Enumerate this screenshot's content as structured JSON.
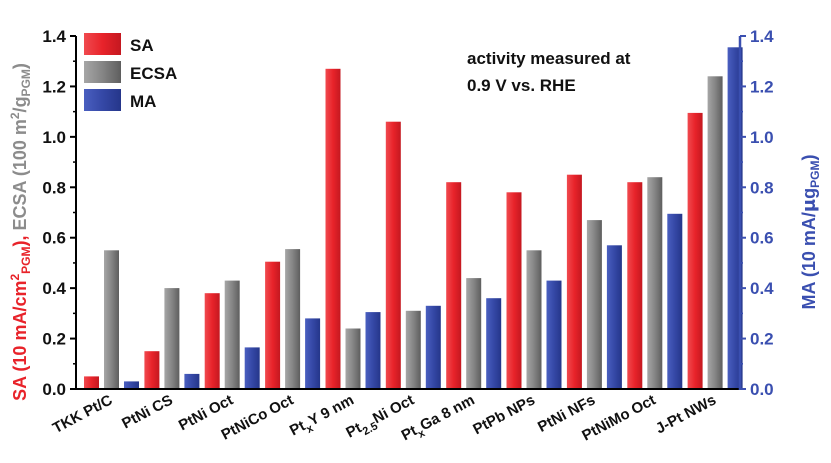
{
  "chart_data": {
    "type": "bar",
    "categories": [
      {
        "main": "TKK Pt/C"
      },
      {
        "main": "PtNi CS"
      },
      {
        "main": "PtNi Oct"
      },
      {
        "main": "PtNiCo Oct"
      },
      {
        "main": "Pt",
        "sub": "x",
        "rest": "Y 9 nm"
      },
      {
        "main": "Pt",
        "sub": "2.5",
        "rest": "Ni Oct"
      },
      {
        "main": "Pt",
        "sub": "x",
        "rest": "Ga 8 nm"
      },
      {
        "main": "PtPb NPs"
      },
      {
        "main": "PtNi NFs"
      },
      {
        "main": "PtNiMo Oct"
      },
      {
        "main": "J-Pt NWs"
      }
    ],
    "series": [
      {
        "name": "SA",
        "color": "#e8232a",
        "values": [
          0.05,
          0.15,
          0.38,
          0.505,
          1.27,
          1.06,
          0.82,
          0.78,
          0.85,
          0.82,
          1.095
        ]
      },
      {
        "name": "ECSA",
        "color": "#808080",
        "values": [
          0.55,
          0.4,
          0.43,
          0.555,
          0.24,
          0.31,
          0.44,
          0.55,
          0.67,
          0.84,
          1.24
        ]
      },
      {
        "name": "MA",
        "color": "#3548a6",
        "values": [
          0.03,
          0.06,
          0.165,
          0.28,
          0.305,
          0.33,
          0.36,
          0.43,
          0.57,
          0.695,
          1.355
        ]
      }
    ],
    "ylim": [
      0,
      1.4
    ],
    "y_ticks": [
      "0.0",
      "0.2",
      "0.4",
      "0.6",
      "0.8",
      "1.0",
      "1.2",
      "1.4"
    ],
    "y_left_label": {
      "sa_part": "SA (10 mA/cm",
      "sa_sup": "2",
      "sa_sub": "PGM",
      "sa_end": "), ",
      "ecsa_part": "ECSA (100 m",
      "ecsa_sup": "2",
      "ecsa_mid": "/g",
      "ecsa_sub": "PGM",
      "ecsa_end": ")"
    },
    "y_right_label": {
      "part1": "MA (10 mA/",
      "mu": "μ",
      "part2": "g",
      "sub": "PGM",
      "part3": ")"
    },
    "annotation": [
      "activity measured at",
      "0.9 V vs. RHE"
    ],
    "legend_position": "top-left",
    "colors": {
      "sa_axis": "#e8232a",
      "ecsa_axis": "#8c8c8c",
      "ma_axis": "#3a4fb0"
    }
  }
}
